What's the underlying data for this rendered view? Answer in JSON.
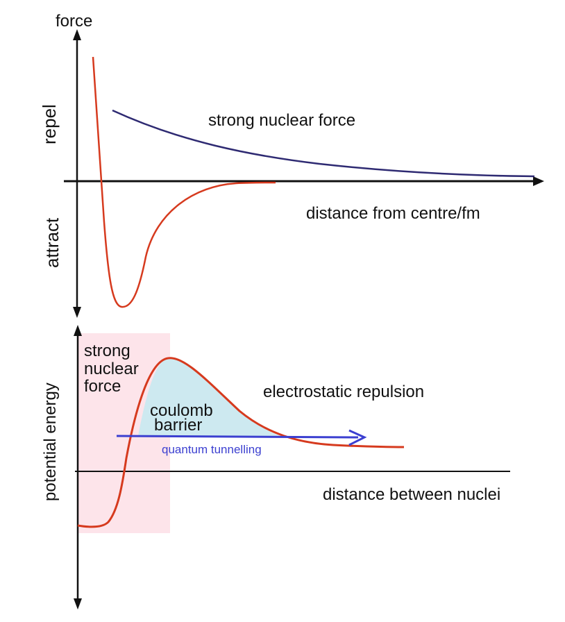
{
  "top_panel": {
    "y_axis_label": "force",
    "repel_label": "repel",
    "attract_label": "attract",
    "x_axis_label": "distance from centre/fm",
    "strong_force_label": "strong nuclear force"
  },
  "bottom_panel": {
    "y_axis_label": "potential energy",
    "x_axis_label": "distance between nuclei",
    "strong_region_label": [
      "strong",
      "nuclear",
      "force"
    ],
    "electrostatic_label": "electrostatic repulsion",
    "barrier_label": [
      "coulomb",
      "barrier"
    ],
    "tunnelling_label": "quantum tunnelling"
  },
  "colors": {
    "axis": "#111111",
    "red_curve": "#d63a1e",
    "blue_curve": "#2e2a72",
    "strong_region_fill": "#fde4ea",
    "barrier_fill": "#cde9f0",
    "tunnelling_arrow": "#3b3fd0",
    "tunnelling_text": "#3b3fd0",
    "text": "#111111"
  }
}
